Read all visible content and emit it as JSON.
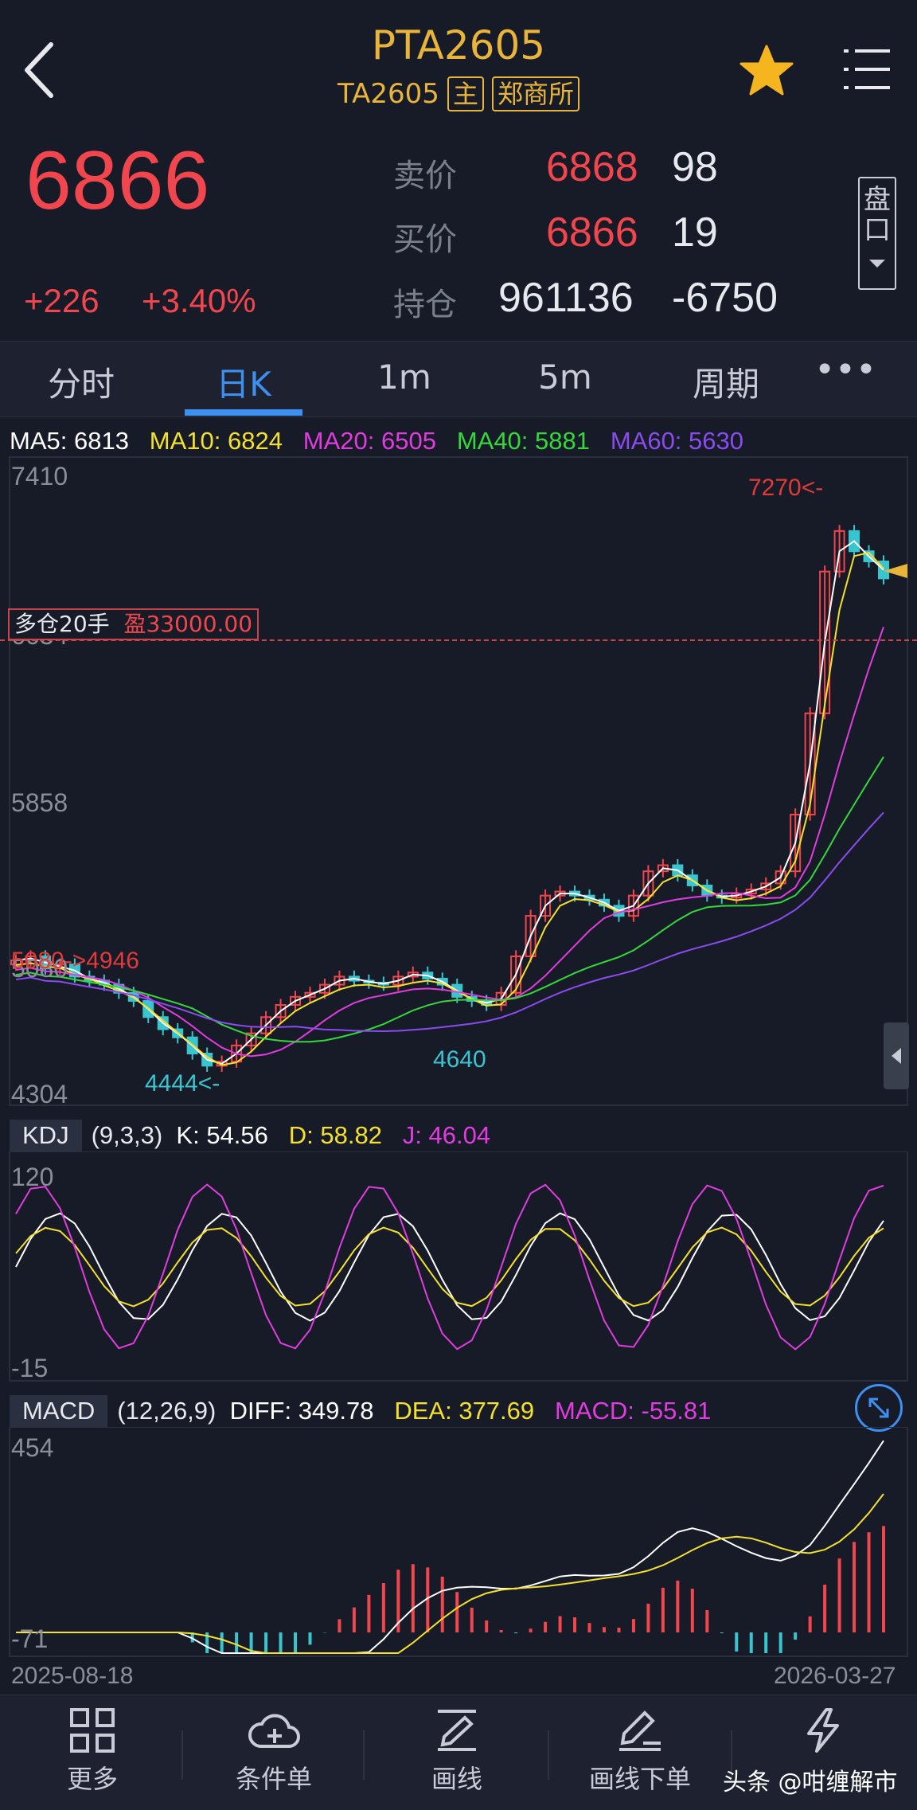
{
  "header": {
    "title": "PTA2605",
    "code": "TA2605",
    "tag_main": "主",
    "tag_exchange": "郑商所"
  },
  "quote": {
    "last": "6866",
    "change": "+226",
    "change_pct": "+3.40%",
    "ask_label": "卖价",
    "ask_price": "6868",
    "ask_vol": "98",
    "bid_label": "买价",
    "bid_price": "6866",
    "bid_vol": "19",
    "oi_label": "持仓",
    "oi": "961136",
    "oi_change": "-6750",
    "pankou_label": "盘口"
  },
  "tabs": [
    "分时",
    "日K",
    "1m",
    "5m",
    "周期"
  ],
  "ma_legend": [
    {
      "label": "MA5: 6813",
      "color": "#ffffff"
    },
    {
      "label": "MA10: 6824",
      "color": "#f5e12c"
    },
    {
      "label": "MA20: 6505",
      "color": "#e13ce0"
    },
    {
      "label": "MA40: 5881",
      "color": "#33d93a"
    },
    {
      "label": "MA60: 5630",
      "color": "#8a4bf0"
    }
  ],
  "price_axis": [
    "7410",
    "6634",
    "5858",
    "5080",
    "4304"
  ],
  "position_tag": {
    "text": "多仓20手",
    "pnl": "盈33000.00"
  },
  "annotations": {
    "high": "7270<-",
    "start": "5080->4946",
    "low": "4444<-",
    "mid_low": "4640"
  },
  "kdj": {
    "name": "KDJ",
    "params": "(9,3,3)",
    "k": "K: 54.56",
    "d": "D: 58.82",
    "j": "J: 46.04",
    "axis_top": "120",
    "axis_bottom": "-15"
  },
  "macd": {
    "name": "MACD",
    "params": "(12,26,9)",
    "diff": "DIFF: 349.78",
    "dea": "DEA: 377.69",
    "macd": "MACD: -55.81",
    "axis_top": "454",
    "axis_bottom": "-71"
  },
  "dates": {
    "start": "2025-08-18",
    "end": "2026-03-27"
  },
  "nav": [
    "更多",
    "条件单",
    "画线",
    "画线下单"
  ],
  "watermark": "头条 @咁缠解市",
  "colors": {
    "up": "#f1464d",
    "down": "#39c5cf",
    "accent": "#3d8ff0",
    "gold": "#e8b53a"
  },
  "chart_data": {
    "type": "candlestick",
    "series": [
      {
        "name": "price",
        "approx_close": [
          4980,
          5000,
          4940,
          4960,
          4900,
          4880,
          4860,
          4820,
          4780,
          4700,
          4640,
          4600,
          4520,
          4460,
          4480,
          4560,
          4620,
          4700,
          4760,
          4800,
          4820,
          4860,
          4900,
          4880,
          4870,
          4860,
          4900,
          4920,
          4890,
          4860,
          4800,
          4780,
          4760,
          4820,
          5000,
          5200,
          5300,
          5320,
          5300,
          5280,
          5250,
          5200,
          5300,
          5420,
          5450,
          5400,
          5350,
          5300,
          5290,
          5310,
          5330,
          5360,
          5420,
          5700,
          6200,
          6900,
          7100,
          7000,
          6950,
          6866
        ]
      }
    ],
    "ylim": [
      4304,
      7410
    ]
  }
}
